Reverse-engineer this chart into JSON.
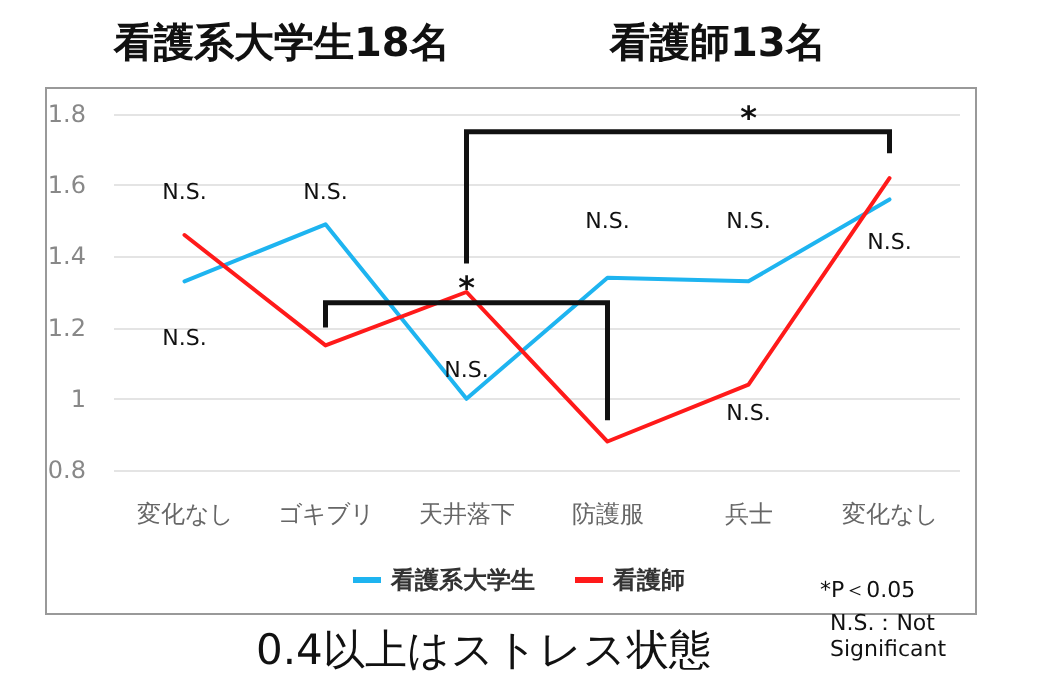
{
  "chart_data": {
    "type": "line",
    "title": "看護系大学生18名",
    "subtitle": "看護師13名",
    "categories": [
      "変化なし",
      "ゴキブリ",
      "天井落下",
      "防護服",
      "兵士",
      "変化なし"
    ],
    "series": [
      {
        "name": "看護系大学生",
        "color": "#1eb4f0",
        "values": [
          1.33,
          1.49,
          1.0,
          1.34,
          1.33,
          1.56
        ]
      },
      {
        "name": "看護師",
        "color": "#ff1a1a",
        "values": [
          1.46,
          1.15,
          1.3,
          0.88,
          1.04,
          1.62
        ]
      }
    ],
    "ylim": [
      0.8,
      1.8
    ],
    "yticks": [
      0.8,
      {
        "value": 1,
        "label": "1"
      },
      1.2,
      1.4,
      1.6,
      1.8
    ],
    "grid": "y",
    "legend": "bottom",
    "marker": "none",
    "line_style": "solid",
    "annotations": [
      "N.S.",
      "N.S.",
      "N.S.",
      "N.S.",
      "N.S.",
      "N.S.",
      "N.S.",
      "N.S.",
      "*",
      "*",
      "*P＜0.05",
      "N.S.：Not Significant",
      "0.4以上はストレス状態"
    ]
  }
}
